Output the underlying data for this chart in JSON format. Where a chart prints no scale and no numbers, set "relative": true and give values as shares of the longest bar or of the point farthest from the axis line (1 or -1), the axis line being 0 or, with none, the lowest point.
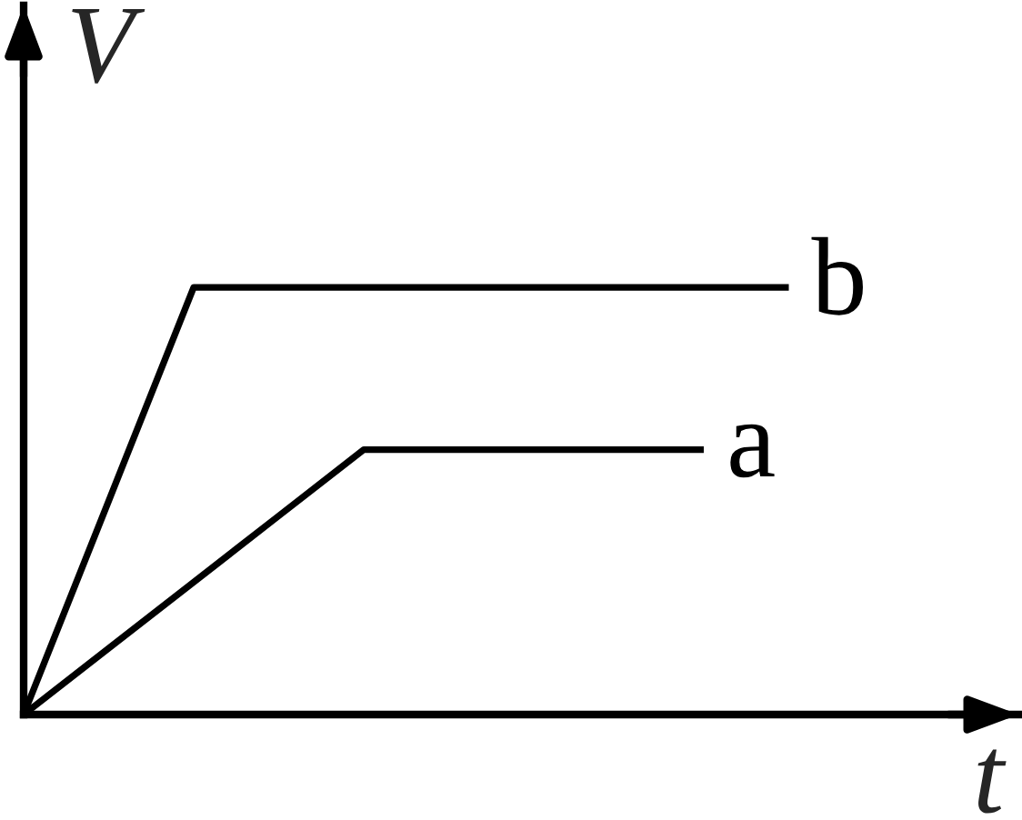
{
  "chart_data": {
    "type": "line",
    "relative": true,
    "xlabel": "t",
    "ylabel": "V",
    "categories": [
      null,
      null,
      null,
      null,
      null,
      null,
      null,
      null,
      null,
      null
    ],
    "series": [
      {
        "name": "a",
        "color": "#000000",
        "values": [
          0,
          0.155,
          0.31,
          0.465,
          0.62,
          0.62,
          0.62,
          0.62,
          0.62,
          null
        ]
      },
      {
        "name": "b",
        "color": "#000000",
        "values": [
          0,
          0.5,
          1,
          1,
          1,
          1,
          1,
          1,
          1,
          1
        ]
      }
    ],
    "legend": false,
    "marker": "none",
    "line_style": "solid"
  }
}
